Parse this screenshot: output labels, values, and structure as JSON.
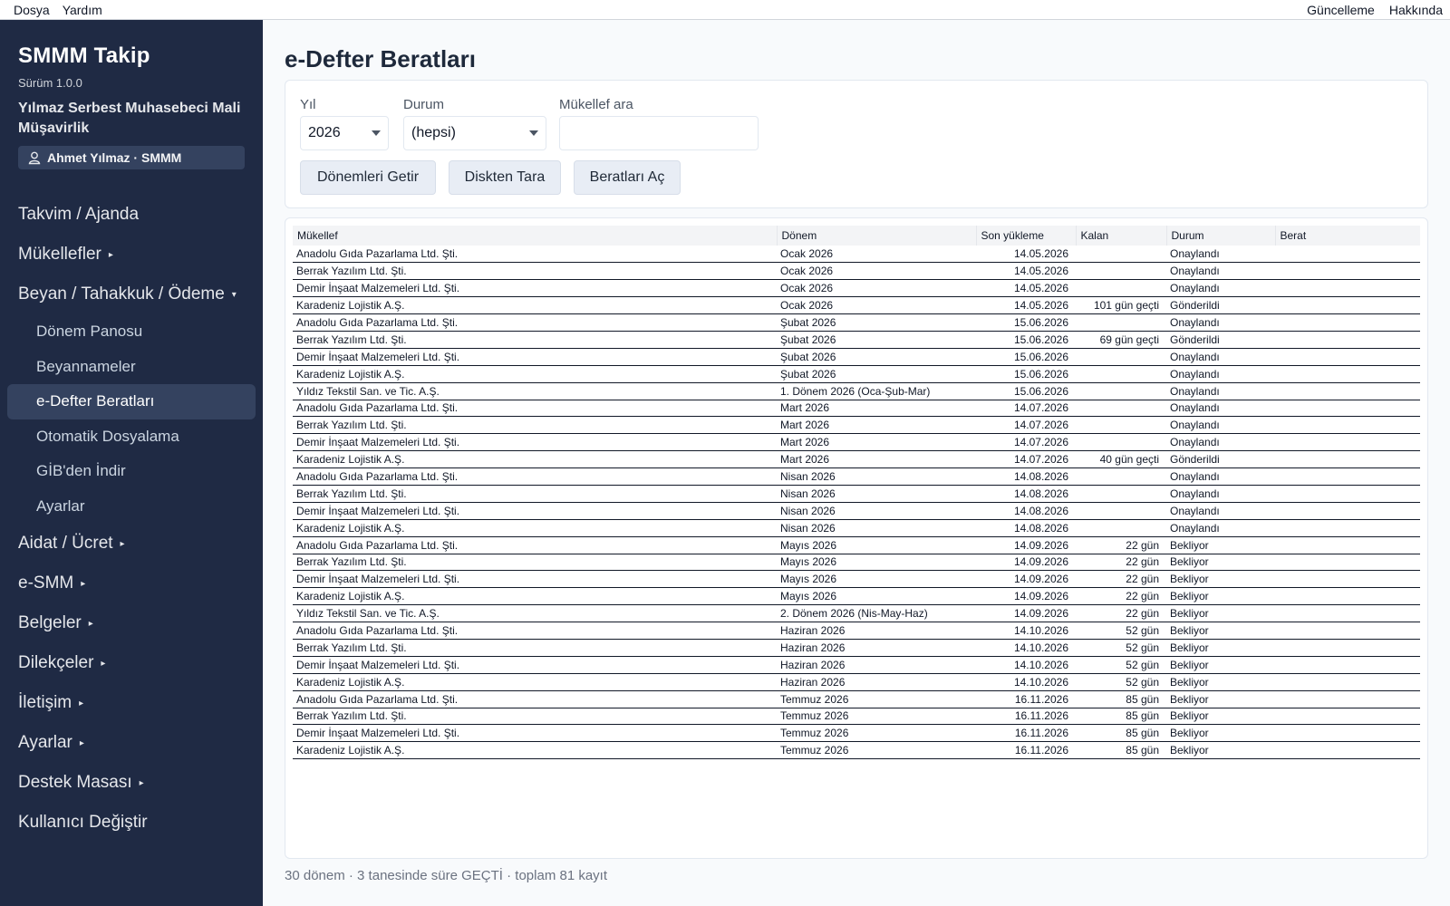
{
  "menubar": {
    "left": [
      "Dosya",
      "Yardım"
    ],
    "right": [
      "Güncelleme",
      "Hakkında"
    ]
  },
  "sidebar": {
    "app_title": "SMMM Takip",
    "version": "Sürüm 1.0.0",
    "company": "Yılmaz Serbest Muhasebeci Mali Müşavirlik",
    "user": "Ahmet Yılmaz · SMMM",
    "nav": [
      {
        "label": "Takvim / Ajanda",
        "caret": ""
      },
      {
        "label": "Mükellefler",
        "caret": "▸"
      },
      {
        "label": "Beyan / Tahakkuk / Ödeme",
        "caret": "▾"
      }
    ],
    "sub": [
      {
        "label": "Dönem Panosu"
      },
      {
        "label": "Beyannameler"
      },
      {
        "label": "e-Defter Beratları"
      },
      {
        "label": "Otomatik Dosyalama"
      },
      {
        "label": "GİB'den İndir"
      },
      {
        "label": "Ayarlar"
      }
    ],
    "nav2": [
      {
        "label": "Aidat / Ücret",
        "caret": "▸"
      },
      {
        "label": "e-SMM",
        "caret": "▸"
      },
      {
        "label": "Belgeler",
        "caret": "▸"
      },
      {
        "label": "Dilekçeler",
        "caret": "▸"
      },
      {
        "label": "İletişim",
        "caret": "▸"
      },
      {
        "label": "Ayarlar",
        "caret": "▸"
      },
      {
        "label": "Destek Masası",
        "caret": "▸"
      },
      {
        "label": "Kullanıcı Değiştir",
        "caret": ""
      }
    ]
  },
  "main": {
    "title": "e-Defter Beratları",
    "filters": {
      "year_label": "Yıl",
      "year_value": "2026",
      "status_label": "Durum",
      "status_value": "(hepsi)",
      "search_label": "Mükellef ara",
      "search_value": ""
    },
    "buttons": {
      "fetch": "Dönemleri Getir",
      "scan": "Diskten Tara",
      "open": "Beratları Aç"
    },
    "columns": [
      "Mükellef",
      "Dönem",
      "Son yükleme",
      "Kalan",
      "Durum",
      "Berat"
    ],
    "rows": [
      [
        "Anadolu Gıda Pazarlama Ltd. Şti.",
        "Ocak 2026",
        "14.05.2026",
        "",
        "Onaylandı",
        ""
      ],
      [
        "Berrak Yazılım Ltd. Şti.",
        "Ocak 2026",
        "14.05.2026",
        "",
        "Onaylandı",
        ""
      ],
      [
        "Demir İnşaat Malzemeleri Ltd. Şti.",
        "Ocak 2026",
        "14.05.2026",
        "",
        "Onaylandı",
        ""
      ],
      [
        "Karadeniz Lojistik A.Ş.",
        "Ocak 2026",
        "14.05.2026",
        "101 gün geçti",
        "Gönderildi",
        ""
      ],
      [
        "Anadolu Gıda Pazarlama Ltd. Şti.",
        "Şubat 2026",
        "15.06.2026",
        "",
        "Onaylandı",
        ""
      ],
      [
        "Berrak Yazılım Ltd. Şti.",
        "Şubat 2026",
        "15.06.2026",
        "69 gün geçti",
        "Gönderildi",
        ""
      ],
      [
        "Demir İnşaat Malzemeleri Ltd. Şti.",
        "Şubat 2026",
        "15.06.2026",
        "",
        "Onaylandı",
        ""
      ],
      [
        "Karadeniz Lojistik A.Ş.",
        "Şubat 2026",
        "15.06.2026",
        "",
        "Onaylandı",
        ""
      ],
      [
        "Yıldız Tekstil San. ve Tic. A.Ş.",
        "1. Dönem 2026 (Oca-Şub-Mar)",
        "15.06.2026",
        "",
        "Onaylandı",
        ""
      ],
      [
        "Anadolu Gıda Pazarlama Ltd. Şti.",
        "Mart 2026",
        "14.07.2026",
        "",
        "Onaylandı",
        ""
      ],
      [
        "Berrak Yazılım Ltd. Şti.",
        "Mart 2026",
        "14.07.2026",
        "",
        "Onaylandı",
        ""
      ],
      [
        "Demir İnşaat Malzemeleri Ltd. Şti.",
        "Mart 2026",
        "14.07.2026",
        "",
        "Onaylandı",
        ""
      ],
      [
        "Karadeniz Lojistik A.Ş.",
        "Mart 2026",
        "14.07.2026",
        "40 gün geçti",
        "Gönderildi",
        ""
      ],
      [
        "Anadolu Gıda Pazarlama Ltd. Şti.",
        "Nisan 2026",
        "14.08.2026",
        "",
        "Onaylandı",
        ""
      ],
      [
        "Berrak Yazılım Ltd. Şti.",
        "Nisan 2026",
        "14.08.2026",
        "",
        "Onaylandı",
        ""
      ],
      [
        "Demir İnşaat Malzemeleri Ltd. Şti.",
        "Nisan 2026",
        "14.08.2026",
        "",
        "Onaylandı",
        ""
      ],
      [
        "Karadeniz Lojistik A.Ş.",
        "Nisan 2026",
        "14.08.2026",
        "",
        "Onaylandı",
        ""
      ],
      [
        "Anadolu Gıda Pazarlama Ltd. Şti.",
        "Mayıs 2026",
        "14.09.2026",
        "22 gün",
        "Bekliyor",
        ""
      ],
      [
        "Berrak Yazılım Ltd. Şti.",
        "Mayıs 2026",
        "14.09.2026",
        "22 gün",
        "Bekliyor",
        ""
      ],
      [
        "Demir İnşaat Malzemeleri Ltd. Şti.",
        "Mayıs 2026",
        "14.09.2026",
        "22 gün",
        "Bekliyor",
        ""
      ],
      [
        "Karadeniz Lojistik A.Ş.",
        "Mayıs 2026",
        "14.09.2026",
        "22 gün",
        "Bekliyor",
        ""
      ],
      [
        "Yıldız Tekstil San. ve Tic. A.Ş.",
        "2. Dönem 2026 (Nis-May-Haz)",
        "14.09.2026",
        "22 gün",
        "Bekliyor",
        ""
      ],
      [
        "Anadolu Gıda Pazarlama Ltd. Şti.",
        "Haziran 2026",
        "14.10.2026",
        "52 gün",
        "Bekliyor",
        ""
      ],
      [
        "Berrak Yazılım Ltd. Şti.",
        "Haziran 2026",
        "14.10.2026",
        "52 gün",
        "Bekliyor",
        ""
      ],
      [
        "Demir İnşaat Malzemeleri Ltd. Şti.",
        "Haziran 2026",
        "14.10.2026",
        "52 gün",
        "Bekliyor",
        ""
      ],
      [
        "Karadeniz Lojistik A.Ş.",
        "Haziran 2026",
        "14.10.2026",
        "52 gün",
        "Bekliyor",
        ""
      ],
      [
        "Anadolu Gıda Pazarlama Ltd. Şti.",
        "Temmuz 2026",
        "16.11.2026",
        "85 gün",
        "Bekliyor",
        ""
      ],
      [
        "Berrak Yazılım Ltd. Şti.",
        "Temmuz 2026",
        "16.11.2026",
        "85 gün",
        "Bekliyor",
        ""
      ],
      [
        "Demir İnşaat Malzemeleri Ltd. Şti.",
        "Temmuz 2026",
        "16.11.2026",
        "85 gün",
        "Bekliyor",
        ""
      ],
      [
        "Karadeniz Lojistik A.Ş.",
        "Temmuz 2026",
        "16.11.2026",
        "85 gün",
        "Bekliyor",
        ""
      ]
    ],
    "footer": "30 dönem · 3 tanesinde süre GEÇTİ · toplam 81 kayıt"
  },
  "colors": {
    "sidebar_bg": "#1f2a44",
    "sidebar_active": "#34425f",
    "page_bg": "#f8fafc",
    "button_bg": "#e8edf5"
  }
}
